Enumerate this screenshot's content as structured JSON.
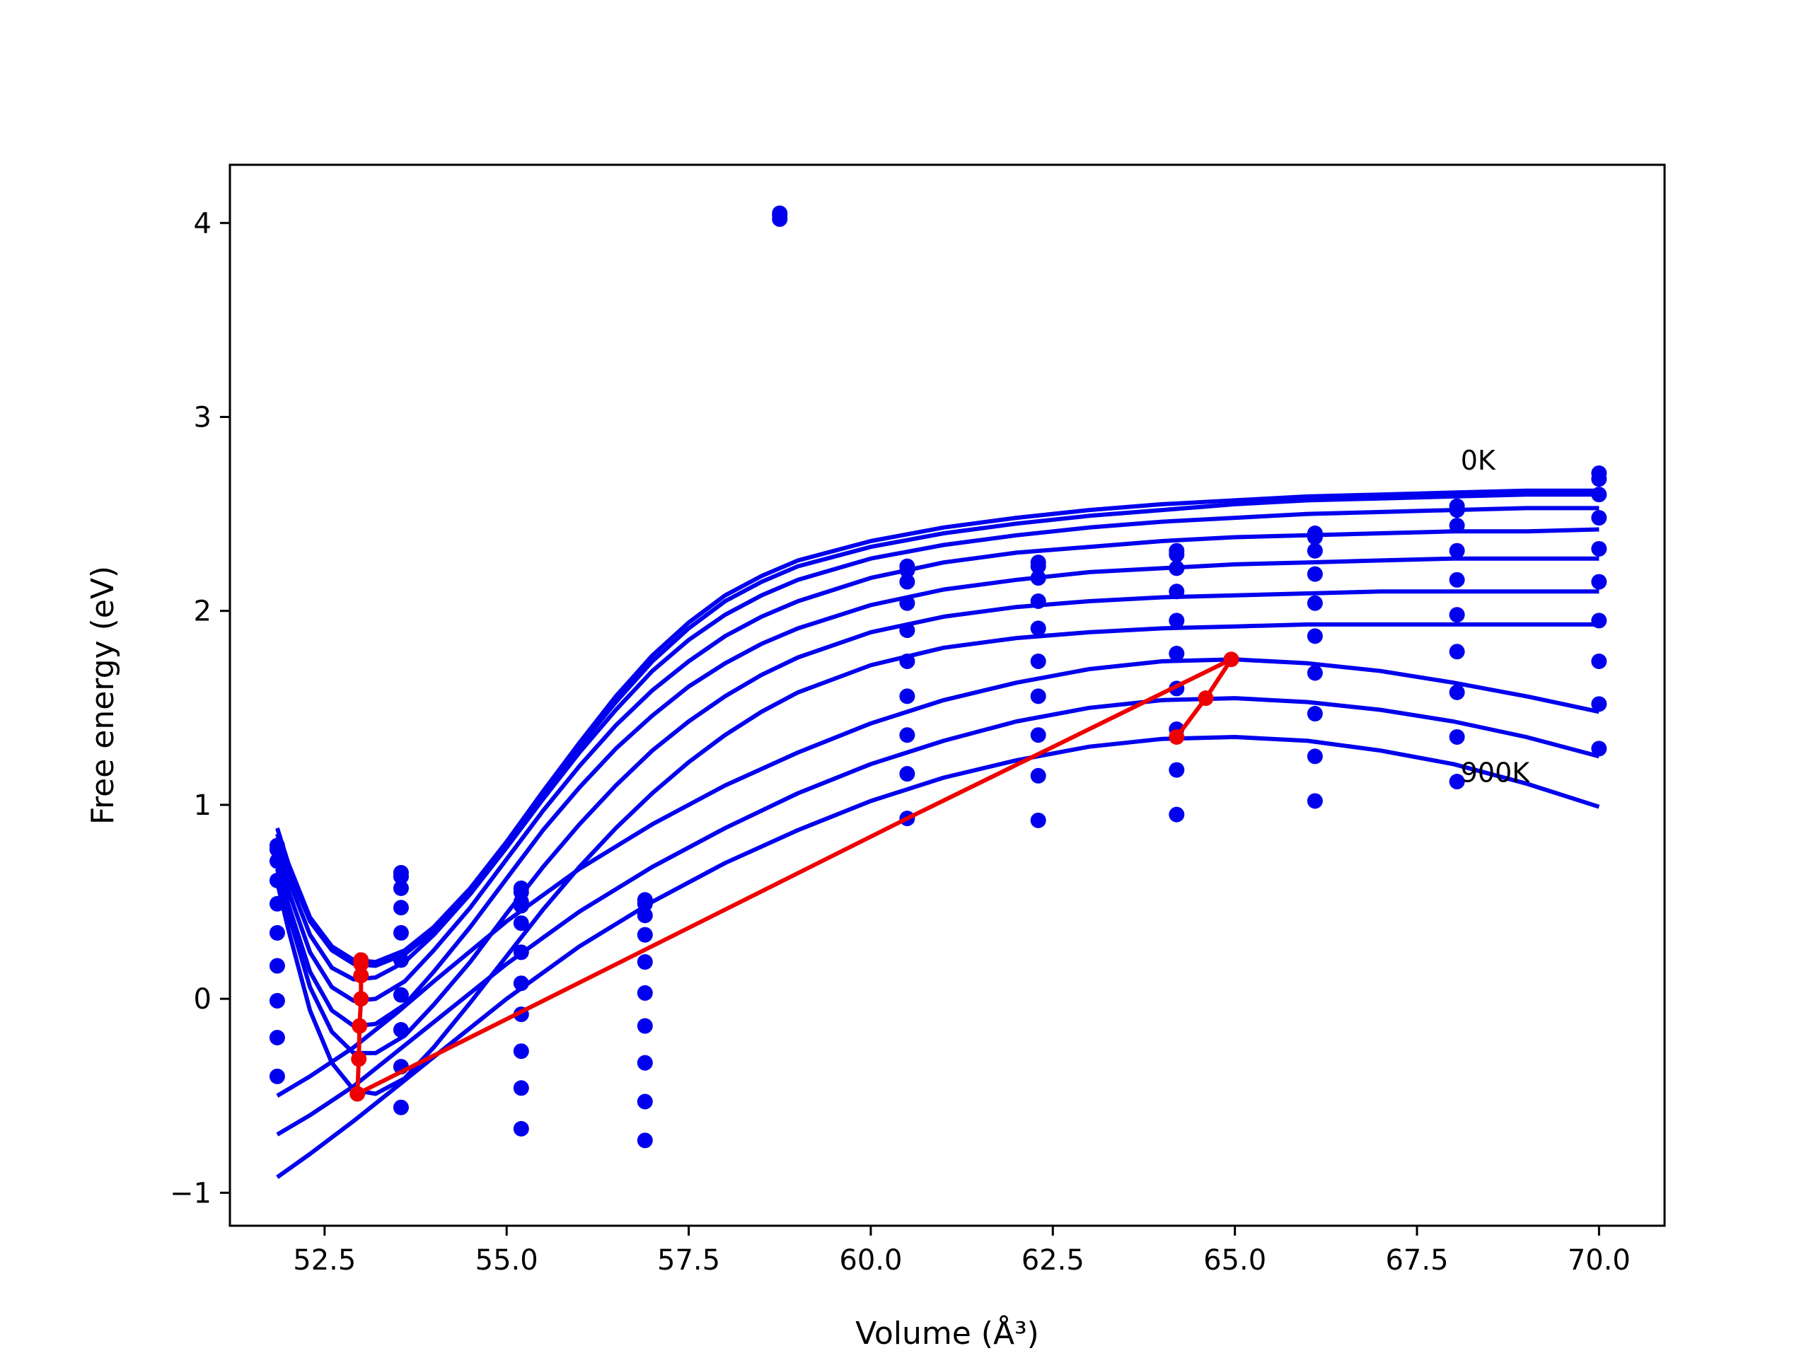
{
  "chart_data": {
    "type": "line",
    "title": "",
    "xlabel": "Volume (Å³)",
    "ylabel": "Free energy (eV)",
    "xlim": [
      51.2,
      70.9
    ],
    "ylim": [
      -1.17,
      4.3
    ],
    "x_ticks": [
      52.5,
      55.0,
      57.5,
      60.0,
      62.5,
      65.0,
      67.5,
      70.0
    ],
    "x_tick_labels": [
      "52.5",
      "55.0",
      "57.5",
      "60.0",
      "62.5",
      "65.0",
      "67.5",
      "70.0"
    ],
    "y_ticks": [
      -1,
      0,
      1,
      2,
      3,
      4
    ],
    "y_tick_labels": [
      "−1",
      "0",
      "1",
      "2",
      "3",
      "4"
    ],
    "grid": false,
    "colors": {
      "fit_curves": "#0000ee",
      "points": "#0000ee",
      "equilibrium_path": "#ee0000"
    },
    "annotations": [
      {
        "text": "0K",
        "x": 68.1,
        "y": 2.78
      },
      {
        "text": "900K",
        "x": 68.1,
        "y": 1.17
      }
    ],
    "fit_curves": [
      {
        "x": [
          51.85,
          52.0,
          52.3,
          52.6,
          52.9,
          53.2,
          53.6,
          54.0,
          54.5,
          55.0,
          55.5,
          56.0,
          56.5,
          57.0,
          57.5,
          58.0,
          58.5,
          59.0,
          60.0,
          61.0,
          62.0,
          63.0,
          64.0,
          65.0,
          66.0,
          67.0,
          68.0,
          69.0,
          70.0
        ],
        "y": [
          0.88,
          0.7,
          0.42,
          0.27,
          0.2,
          0.19,
          0.25,
          0.37,
          0.57,
          0.81,
          1.07,
          1.32,
          1.56,
          1.77,
          1.94,
          2.08,
          2.18,
          2.26,
          2.36,
          2.43,
          2.48,
          2.52,
          2.55,
          2.57,
          2.59,
          2.6,
          2.61,
          2.62,
          2.62
        ]
      },
      {
        "x": [
          51.85,
          52.0,
          52.3,
          52.6,
          52.9,
          53.2,
          53.6,
          54.0,
          54.5,
          55.0,
          55.5,
          56.0,
          56.5,
          57.0,
          57.5,
          58.0,
          58.5,
          59.0,
          60.0,
          61.0,
          62.0,
          63.0,
          64.0,
          65.0,
          66.0,
          67.0,
          68.0,
          69.0,
          70.0
        ],
        "y": [
          0.85,
          0.67,
          0.4,
          0.25,
          0.18,
          0.17,
          0.23,
          0.35,
          0.55,
          0.79,
          1.05,
          1.3,
          1.53,
          1.74,
          1.91,
          2.05,
          2.15,
          2.23,
          2.33,
          2.4,
          2.45,
          2.49,
          2.52,
          2.55,
          2.57,
          2.58,
          2.59,
          2.6,
          2.6
        ]
      },
      {
        "x": [
          51.85,
          52.0,
          52.3,
          52.6,
          52.9,
          53.2,
          53.6,
          54.0,
          54.5,
          55.0,
          55.5,
          56.0,
          56.5,
          57.0,
          57.5,
          58.0,
          58.5,
          59.0,
          60.0,
          61.0,
          62.0,
          63.0,
          64.0,
          65.0,
          66.0,
          67.0,
          68.0,
          69.0,
          70.0
        ],
        "y": [
          0.8,
          0.62,
          0.33,
          0.16,
          0.1,
          0.11,
          0.19,
          0.33,
          0.54,
          0.78,
          1.03,
          1.27,
          1.49,
          1.69,
          1.85,
          1.98,
          2.08,
          2.16,
          2.27,
          2.34,
          2.39,
          2.43,
          2.46,
          2.48,
          2.5,
          2.51,
          2.52,
          2.53,
          2.53
        ]
      },
      {
        "x": [
          51.85,
          52.0,
          52.3,
          52.6,
          52.9,
          53.2,
          53.6,
          54.0,
          54.5,
          55.0,
          55.5,
          56.0,
          56.5,
          57.0,
          57.5,
          58.0,
          58.5,
          59.0,
          60.0,
          61.0,
          62.0,
          63.0,
          64.0,
          65.0,
          66.0,
          67.0,
          68.0,
          69.0,
          70.0
        ],
        "y": [
          0.76,
          0.56,
          0.24,
          0.06,
          -0.01,
          0.0,
          0.09,
          0.25,
          0.47,
          0.72,
          0.97,
          1.2,
          1.41,
          1.59,
          1.74,
          1.87,
          1.97,
          2.05,
          2.17,
          2.25,
          2.3,
          2.33,
          2.36,
          2.38,
          2.39,
          2.4,
          2.41,
          2.41,
          2.42
        ]
      },
      {
        "x": [
          51.85,
          52.0,
          52.3,
          52.6,
          52.9,
          53.2,
          53.6,
          54.0,
          54.5,
          55.0,
          55.5,
          56.0,
          56.5,
          57.0,
          57.5,
          58.0,
          58.5,
          59.0,
          60.0,
          61.0,
          62.0,
          63.0,
          64.0,
          65.0,
          66.0,
          67.0,
          68.0,
          69.0,
          70.0
        ],
        "y": [
          0.71,
          0.49,
          0.14,
          -0.06,
          -0.14,
          -0.13,
          -0.03,
          0.14,
          0.37,
          0.62,
          0.87,
          1.09,
          1.29,
          1.46,
          1.61,
          1.73,
          1.83,
          1.91,
          2.03,
          2.11,
          2.16,
          2.2,
          2.22,
          2.24,
          2.25,
          2.26,
          2.27,
          2.27,
          2.27
        ]
      },
      {
        "x": [
          51.85,
          52.0,
          52.3,
          52.6,
          52.9,
          53.2,
          53.6,
          54.0,
          54.5,
          55.0,
          55.5,
          56.0,
          56.5,
          57.0,
          57.5,
          58.0,
          58.5,
          59.0,
          60.0,
          61.0,
          62.0,
          63.0,
          64.0,
          65.0,
          66.0,
          67.0,
          68.0,
          69.0,
          70.0
        ],
        "y": [
          0.67,
          0.44,
          0.06,
          -0.17,
          -0.28,
          -0.28,
          -0.19,
          -0.03,
          0.19,
          0.44,
          0.68,
          0.9,
          1.1,
          1.28,
          1.43,
          1.56,
          1.67,
          1.76,
          1.89,
          1.97,
          2.02,
          2.05,
          2.07,
          2.08,
          2.09,
          2.1,
          2.1,
          2.1,
          2.1
        ]
      },
      {
        "x": [
          51.85,
          52.0,
          52.3,
          52.6,
          52.9,
          53.2,
          53.6,
          54.0,
          54.5,
          55.0,
          55.5,
          56.0,
          56.5,
          57.0,
          57.5,
          58.0,
          58.5,
          59.0,
          60.0,
          61.0,
          62.0,
          63.0,
          64.0,
          65.0,
          66.0,
          67.0,
          68.0,
          69.0,
          70.0
        ],
        "y": [
          0.6,
          0.36,
          -0.06,
          -0.33,
          -0.47,
          -0.49,
          -0.41,
          -0.25,
          -0.02,
          0.22,
          0.46,
          0.68,
          0.88,
          1.06,
          1.22,
          1.36,
          1.48,
          1.58,
          1.72,
          1.81,
          1.86,
          1.89,
          1.91,
          1.92,
          1.93,
          1.93,
          1.93,
          1.93,
          1.93
        ]
      },
      {
        "x": [
          51.85,
          52.3,
          52.9,
          53.5,
          54.0,
          55.0,
          56.0,
          57.0,
          58.0,
          59.0,
          60.0,
          61.0,
          62.0,
          63.0,
          64.0,
          65.0,
          66.0,
          67.0,
          68.0,
          69.0,
          70.0
        ],
        "y": [
          -0.5,
          -0.4,
          -0.25,
          -0.07,
          0.09,
          0.4,
          0.67,
          0.9,
          1.1,
          1.27,
          1.42,
          1.54,
          1.63,
          1.7,
          1.74,
          1.75,
          1.73,
          1.69,
          1.63,
          1.56,
          1.48
        ]
      },
      {
        "x": [
          51.85,
          52.3,
          52.9,
          53.5,
          54.0,
          55.0,
          56.0,
          57.0,
          58.0,
          59.0,
          60.0,
          61.0,
          62.0,
          63.0,
          64.0,
          65.0,
          66.0,
          67.0,
          68.0,
          69.0,
          70.0
        ],
        "y": [
          -0.7,
          -0.6,
          -0.45,
          -0.27,
          -0.12,
          0.18,
          0.45,
          0.68,
          0.88,
          1.06,
          1.21,
          1.33,
          1.43,
          1.5,
          1.54,
          1.55,
          1.53,
          1.49,
          1.43,
          1.35,
          1.25
        ]
      },
      {
        "x": [
          51.85,
          52.3,
          52.9,
          53.5,
          54.0,
          55.0,
          56.0,
          57.0,
          58.0,
          59.0,
          60.0,
          61.0,
          62.0,
          63.0,
          64.0,
          65.0,
          66.0,
          67.0,
          68.0,
          69.0,
          70.0
        ],
        "y": [
          -0.92,
          -0.8,
          -0.63,
          -0.45,
          -0.3,
          0.0,
          0.27,
          0.5,
          0.7,
          0.87,
          1.02,
          1.14,
          1.23,
          1.3,
          1.34,
          1.35,
          1.33,
          1.28,
          1.21,
          1.11,
          0.99
        ]
      }
    ],
    "data_points": [
      {
        "x": 51.85,
        "y": [
          0.79,
          0.77,
          0.71,
          0.61,
          0.49,
          0.34,
          0.17,
          -0.01,
          -0.2,
          -0.4
        ]
      },
      {
        "x": 53.55,
        "y": [
          0.65,
          0.63,
          0.57,
          0.47,
          0.34,
          0.2,
          0.02,
          -0.16,
          -0.35,
          -0.56
        ]
      },
      {
        "x": 55.2,
        "y": [
          0.57,
          0.55,
          0.5,
          0.48,
          0.39,
          0.24,
          0.08,
          -0.08,
          -0.27,
          -0.46,
          -0.67
        ]
      },
      {
        "x": 56.9,
        "y": [
          0.51,
          0.49,
          0.43,
          0.33,
          0.19,
          0.03,
          -0.14,
          -0.33,
          -0.53,
          -0.73
        ]
      },
      {
        "x": 58.75,
        "y": [
          4.05,
          4.04,
          4.02
        ]
      },
      {
        "x": 60.5,
        "y": [
          2.23,
          2.21,
          2.15,
          2.04,
          1.9,
          1.74,
          1.56,
          1.36,
          1.16,
          0.93
        ]
      },
      {
        "x": 62.3,
        "y": [
          2.25,
          2.23,
          2.17,
          2.05,
          1.91,
          1.74,
          1.56,
          1.36,
          1.15,
          0.92
        ]
      },
      {
        "x": 64.2,
        "y": [
          2.31,
          2.29,
          2.22,
          2.1,
          1.95,
          1.78,
          1.6,
          1.39,
          1.18,
          0.95
        ]
      },
      {
        "x": 66.1,
        "y": [
          2.4,
          2.38,
          2.31,
          2.19,
          2.04,
          1.87,
          1.68,
          1.47,
          1.25,
          1.02
        ]
      },
      {
        "x": 68.05,
        "y": [
          2.54,
          2.52,
          2.44,
          2.31,
          2.16,
          1.98,
          1.79,
          1.58,
          1.35,
          1.12
        ]
      },
      {
        "x": 70.0,
        "y": [
          2.71,
          2.68,
          2.6,
          2.48,
          2.32,
          2.15,
          1.95,
          1.74,
          1.52,
          1.29
        ]
      }
    ],
    "equilibrium_path": {
      "x": [
        53.0,
        53.0,
        53.0,
        53.0,
        52.98,
        52.97,
        52.95,
        60.5,
        64.95,
        64.6,
        64.2
      ],
      "y": [
        0.2,
        0.18,
        0.12,
        0.0,
        -0.14,
        -0.31,
        -0.49,
        0.93,
        1.75,
        1.55,
        1.35
      ]
    }
  }
}
